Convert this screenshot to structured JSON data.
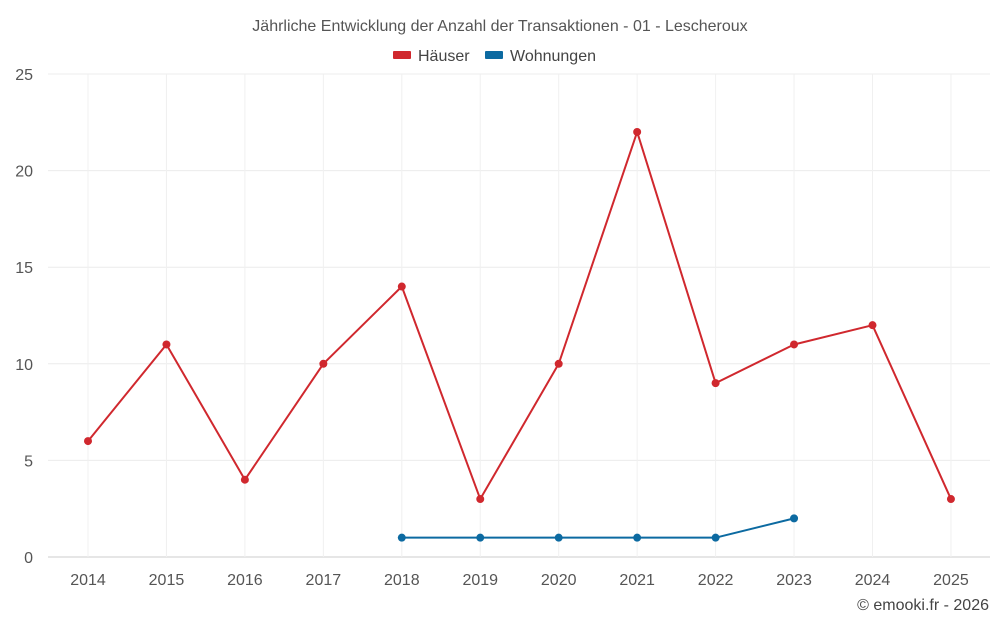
{
  "chart_data": {
    "type": "line",
    "title": "Jährliche Entwicklung der Anzahl der Transaktionen - 01 - Lescheroux",
    "categories": [
      "2014",
      "2015",
      "2016",
      "2017",
      "2018",
      "2019",
      "2020",
      "2021",
      "2022",
      "2023",
      "2024",
      "2025"
    ],
    "y_ticks": [
      "0",
      "5",
      "10",
      "15",
      "20",
      "25"
    ],
    "ylim": [
      0,
      25
    ],
    "grid": true,
    "legend_position": "top-center",
    "series": [
      {
        "name": "Häuser",
        "color": "#d0282e",
        "values": [
          6,
          11,
          4,
          10,
          14,
          3,
          10,
          22,
          9,
          11,
          12,
          3
        ]
      },
      {
        "name": "Wohnungen",
        "color": "#0c6aa1",
        "values": [
          null,
          null,
          null,
          null,
          1,
          1,
          1,
          1,
          1,
          2,
          null,
          null
        ]
      }
    ],
    "credit": "© emooki.fr - 2026"
  }
}
